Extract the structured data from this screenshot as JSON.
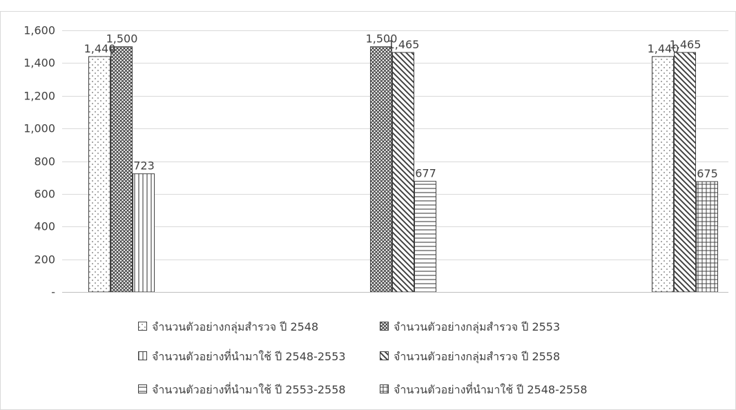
{
  "chart_data": {
    "type": "bar",
    "title": "",
    "xlabel": "",
    "ylabel": "",
    "ylim": [
      0,
      1600
    ],
    "yticks": [
      0,
      200,
      400,
      600,
      800,
      1000,
      1200,
      1400,
      1600
    ],
    "ytick_labels": [
      "-",
      "200",
      "400",
      "600",
      "800",
      "1,000",
      "1,200",
      "1,400",
      "1,600"
    ],
    "categories": [
      "",
      "",
      ""
    ],
    "grid": true,
    "legend_position": "bottom",
    "groups": [
      {
        "bars": [
          {
            "series": 0,
            "value": 1440,
            "label": "1,440"
          },
          {
            "series": 1,
            "value": 1500,
            "label": "1,500"
          },
          {
            "series": 2,
            "value": 723,
            "label": "723"
          }
        ]
      },
      {
        "bars": [
          {
            "series": 1,
            "value": 1500,
            "label": "1,500"
          },
          {
            "series": 3,
            "value": 1465,
            "label": "1,465"
          },
          {
            "series": 4,
            "value": 677,
            "label": "677"
          }
        ]
      },
      {
        "bars": [
          {
            "series": 0,
            "value": 1440,
            "label": "1,440"
          },
          {
            "series": 3,
            "value": 1465,
            "label": "1,465"
          },
          {
            "series": 5,
            "value": 675,
            "label": "675"
          }
        ]
      }
    ],
    "series": [
      {
        "name": "จำนวนตัวอย่างกลุ่มสำรวจ ปี 2548",
        "pattern": "dots"
      },
      {
        "name": "จำนวนตัวอย่างกลุ่มสำรวจ ปี 2553",
        "pattern": "crosshatch"
      },
      {
        "name": "จำนวนตัวอย่างที่นำมาใช้ ปี 2548-2553",
        "pattern": "vertical"
      },
      {
        "name": "จำนวนตัวอย่างกลุ่มสำรวจ ปี 2558",
        "pattern": "diagonal"
      },
      {
        "name": "จำนวนตัวอย่างที่นำมาใช้ ปี 2553-2558",
        "pattern": "horizontal"
      },
      {
        "name": "จำนวนตัวอย่างที่นำมาใช้ ปี 2548-2558",
        "pattern": "grid"
      }
    ],
    "colors": {
      "bar_stroke": "#404040",
      "grid": "#d9d9d9",
      "axis": "#bfbfbf",
      "frame": "#d9d9d9",
      "text": "#404040"
    }
  }
}
